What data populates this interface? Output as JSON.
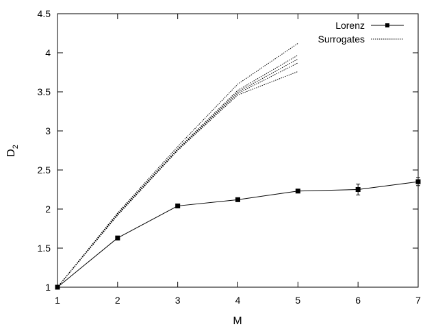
{
  "chart_data": {
    "type": "line",
    "xlabel": "M",
    "ylabel": {
      "base": "D",
      "subscript": "2"
    },
    "xlim": [
      1,
      7
    ],
    "ylim": [
      1,
      4.5
    ],
    "xticks": [
      "1",
      "2",
      "3",
      "4",
      "5",
      "6",
      "7"
    ],
    "yticks": [
      "1",
      "1.5",
      "2",
      "2.5",
      "3",
      "3.5",
      "4",
      "4.5"
    ],
    "grid": false,
    "legend_position": "top-right",
    "series": [
      {
        "name": "Lorenz",
        "style": "solid-with-square-markers",
        "color": "#000000",
        "x": [
          1,
          2,
          3,
          4,
          5,
          6,
          7
        ],
        "y": [
          1.0,
          1.63,
          2.04,
          2.12,
          2.23,
          2.25,
          2.35
        ],
        "error": [
          0.0,
          0.01,
          0.01,
          0.01,
          0.015,
          0.07,
          0.05
        ]
      },
      {
        "name": "Surrogates",
        "style": "dotted",
        "color": "#000000",
        "runs": [
          {
            "x": [
              1,
              2,
              3,
              4,
              5
            ],
            "y": [
              1.0,
              1.95,
              2.8,
              3.6,
              4.12
            ]
          },
          {
            "x": [
              1,
              2,
              3,
              4,
              5
            ],
            "y": [
              1.0,
              1.94,
              2.77,
              3.52,
              3.97
            ]
          },
          {
            "x": [
              1,
              2,
              3,
              4,
              5
            ],
            "y": [
              1.0,
              1.93,
              2.76,
              3.5,
              3.92
            ]
          },
          {
            "x": [
              1,
              2,
              3,
              4,
              5
            ],
            "y": [
              1.0,
              1.93,
              2.76,
              3.48,
              3.87
            ]
          },
          {
            "x": [
              1,
              2,
              3,
              4,
              5
            ],
            "y": [
              1.0,
              1.92,
              2.75,
              3.46,
              3.76
            ]
          }
        ]
      }
    ]
  }
}
